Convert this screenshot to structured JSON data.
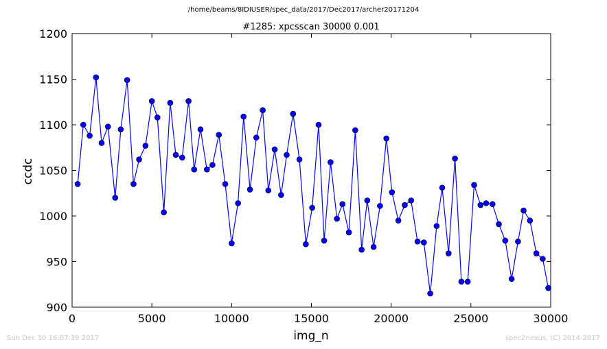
{
  "header": {
    "file_path": "/home/beams/8IDIUSER/spec_data/2017/Dec2017/archer20171204"
  },
  "footer": {
    "timestamp": "Sun Dec 10 16:07:39 2017",
    "credit": "spec2nexus, (C) 2014-2017"
  },
  "chart_data": {
    "type": "line",
    "title": "#1285: xpcsscan 30000 0.001",
    "xlabel": "img_n",
    "ylabel": "ccdc",
    "xlim": [
      0,
      30000
    ],
    "ylim": [
      900,
      1200
    ],
    "xticks": [
      "0",
      "5000",
      "10000",
      "15000",
      "20000",
      "25000",
      "30000"
    ],
    "yticks": [
      "900",
      "950",
      "1000",
      "1050",
      "1100",
      "1150",
      "1200"
    ],
    "grid": false,
    "legend": false,
    "colors": {
      "line": "#0000ff",
      "marker": "#0000ff"
    },
    "series": [
      {
        "x": [
          350,
          700,
          1100,
          1500,
          1850,
          2250,
          2700,
          3050,
          3450,
          3850,
          4200,
          4600,
          5000,
          5350,
          5750,
          6150,
          6500,
          6900,
          7300,
          7650,
          8050,
          8450,
          8800,
          9200,
          9600,
          10000,
          10400,
          10750,
          11150,
          11550,
          11950,
          12300,
          12700,
          13100,
          13450,
          13850,
          14250,
          14650,
          15050,
          15450,
          15800,
          16200,
          16600,
          16950,
          17350,
          17750,
          18150,
          18500,
          18900,
          19300,
          19700,
          20050,
          20450,
          20850,
          21250,
          21650,
          22050,
          22450,
          22850,
          23200,
          23600,
          24000,
          24400,
          24800,
          25200,
          25600,
          25950,
          26350,
          26750,
          27150,
          27550,
          27950,
          28300,
          28700,
          29100,
          29500,
          29850
        ],
        "y": [
          1035,
          1100,
          1088,
          1152,
          1080,
          1098,
          1020,
          1095,
          1149,
          1035,
          1062,
          1077,
          1126,
          1108,
          1004,
          1124,
          1067,
          1064,
          1126,
          1051,
          1095,
          1051,
          1056,
          1089,
          1035,
          970,
          1014,
          1109,
          1029,
          1086,
          1116,
          1028,
          1073,
          1023,
          1067,
          1112,
          1062,
          969,
          1009,
          1100,
          973,
          1059,
          997,
          1013,
          982,
          1094,
          963,
          1017,
          966,
          1011,
          1085,
          1026,
          995,
          1012,
          1017,
          972,
          971,
          915,
          989,
          1031,
          959,
          1063,
          928,
          928,
          1034,
          1012,
          1014,
          1013,
          991,
          973,
          931,
          972,
          1006,
          995,
          959,
          953,
          921
        ]
      }
    ]
  }
}
